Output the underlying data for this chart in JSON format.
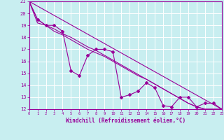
{
  "xlabel": "Windchill (Refroidissement éolien,°C)",
  "ylabel": "",
  "bg_color": "#c8eef0",
  "line_color": "#990099",
  "grid_color": "#ffffff",
  "xmin": 0,
  "xmax": 23,
  "ymin": 12,
  "ymax": 21,
  "line1_x": [
    0,
    1,
    2,
    3,
    4,
    5,
    6,
    7,
    8,
    9,
    10,
    11,
    12,
    13,
    14,
    15,
    16,
    17,
    18,
    19,
    20,
    21,
    22,
    23
  ],
  "line1_y": [
    21.0,
    19.5,
    19.0,
    19.0,
    18.5,
    15.2,
    14.8,
    16.5,
    17.0,
    17.0,
    16.8,
    13.0,
    13.2,
    13.5,
    14.2,
    13.8,
    12.3,
    12.2,
    13.0,
    13.0,
    12.2,
    12.5,
    12.5,
    12.0
  ],
  "line2_x": [
    0,
    1,
    2,
    3,
    4,
    5,
    6,
    7,
    8,
    9,
    10,
    11,
    12,
    13,
    14,
    15,
    16,
    17,
    18,
    19,
    20,
    21,
    22,
    23
  ],
  "line2_y": [
    21.0,
    19.5,
    19.0,
    18.7,
    18.3,
    18.0,
    17.6,
    17.2,
    16.9,
    16.5,
    16.1,
    15.7,
    15.3,
    14.9,
    14.5,
    14.1,
    13.7,
    13.3,
    12.9,
    12.5,
    12.2,
    12.0,
    12.0,
    12.0
  ],
  "line3_x": [
    0,
    23
  ],
  "line3_y": [
    21.0,
    12.0
  ],
  "line4_x": [
    0,
    1,
    2,
    3,
    4,
    5,
    6,
    7,
    8,
    9,
    10,
    11,
    12,
    13,
    14,
    15,
    16,
    17,
    18,
    19,
    20,
    21,
    22,
    23
  ],
  "line4_y": [
    21.0,
    19.2,
    19.0,
    18.5,
    18.2,
    17.8,
    17.4,
    17.0,
    16.7,
    16.4,
    16.0,
    15.6,
    15.2,
    14.8,
    14.5,
    14.1,
    13.7,
    13.3,
    12.9,
    12.5,
    12.2,
    12.0,
    12.0,
    12.0
  ]
}
